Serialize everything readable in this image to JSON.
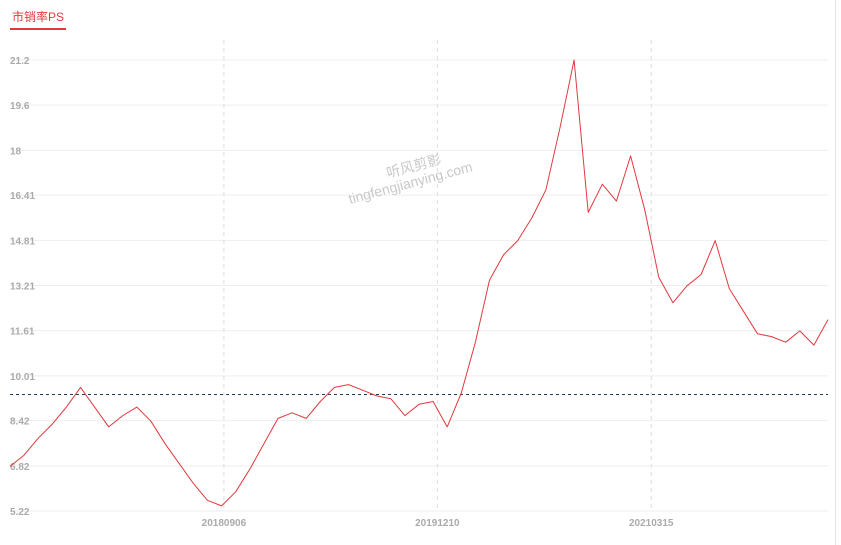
{
  "tab": {
    "label": "市销率PS"
  },
  "watermark": {
    "line1": "听风剪影",
    "line2": "tingfengjianying.com"
  },
  "colors": {
    "line": "#e0393e",
    "baseline": "#1f3b5c",
    "grid": "#eeeeee",
    "vgrid": "#dddddd"
  },
  "chart_data": {
    "type": "line",
    "title": "",
    "xlabel": "",
    "ylabel": "",
    "ylim": [
      5.22,
      21.2
    ],
    "yticks": [
      21.2,
      19.6,
      18,
      16.41,
      14.81,
      13.21,
      11.61,
      10.01,
      8.42,
      6.82,
      5.22
    ],
    "ytick_labels": [
      "21.2",
      "19.6",
      "18",
      "16.41",
      "14.81",
      "13.21",
      "11.61",
      "10.01",
      "8.42",
      "6.82",
      "5.22"
    ],
    "xticks": [
      "20180906",
      "20191210",
      "20210315"
    ],
    "reference_line": 9.35,
    "grid": "horizontal + vertical dashed at date ticks",
    "series": [
      {
        "x": [
          "2017-06",
          "2017-07",
          "2017-08",
          "2017-09",
          "2017-10",
          "2017-11",
          "2017-12",
          "2018-01",
          "2018-02",
          "2018-03",
          "2018-04",
          "2018-05",
          "2018-06",
          "2018-07",
          "2018-08",
          "2018-09",
          "2018-10",
          "2018-11",
          "2018-12",
          "2019-01",
          "2019-02",
          "2019-03",
          "2019-04",
          "2019-05",
          "2019-06",
          "2019-07",
          "2019-08",
          "2019-09",
          "2019-10",
          "2019-11",
          "2019-12",
          "2020-01",
          "2020-02",
          "2020-03",
          "2020-04",
          "2020-05",
          "2020-06",
          "2020-07",
          "2020-08",
          "2020-09",
          "2020-10",
          "2020-11",
          "2020-12",
          "2021-01",
          "2021-02",
          "2021-03",
          "2021-04",
          "2021-05",
          "2021-06",
          "2021-07",
          "2021-08",
          "2021-09",
          "2021-10",
          "2021-11",
          "2021-12",
          "2022-01",
          "2022-02",
          "2022-03",
          "2022-04"
        ],
        "values": [
          6.8,
          7.2,
          7.8,
          8.3,
          8.9,
          9.6,
          8.9,
          8.2,
          8.6,
          8.9,
          8.4,
          7.6,
          6.9,
          6.2,
          5.6,
          5.4,
          5.9,
          6.7,
          7.6,
          8.5,
          8.7,
          8.5,
          9.1,
          9.6,
          9.7,
          9.5,
          9.3,
          9.2,
          8.6,
          9.0,
          9.1,
          8.2,
          9.4,
          11.2,
          13.4,
          14.3,
          14.8,
          15.6,
          16.6,
          18.8,
          21.2,
          15.8,
          16.8,
          16.2,
          17.8,
          15.9,
          13.5,
          12.6,
          13.2,
          13.6,
          14.8,
          13.1,
          12.3,
          11.5,
          11.4,
          11.2,
          11.6,
          11.1,
          12.0
        ]
      }
    ]
  }
}
